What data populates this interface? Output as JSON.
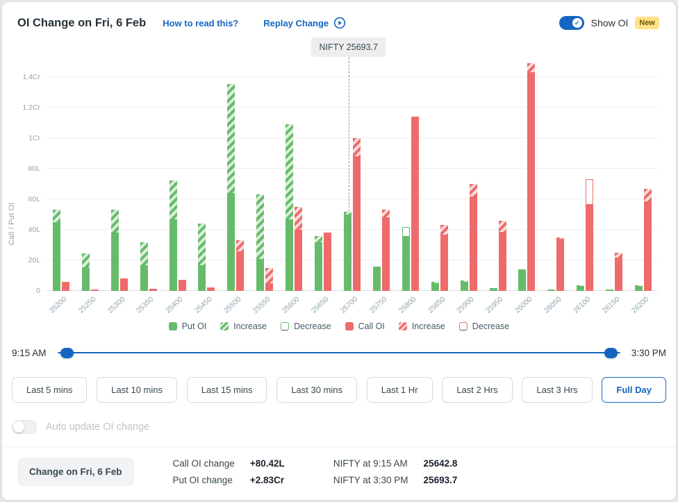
{
  "colors": {
    "put": "#66bb6a",
    "call": "#ef6a6a",
    "accent": "#1565c0",
    "badge_bg": "#ffe28a"
  },
  "header": {
    "title": "OI Change on Fri, 6 Feb",
    "how_to_read": "How to read this?",
    "replay": "Replay Change",
    "show_oi": "Show OI",
    "new_badge": "New"
  },
  "chart_data": {
    "type": "bar",
    "ylabel": "Call / Put OI",
    "unit": "lakh (1Cr = 100L)",
    "ymax_lakh": 150,
    "yticks": [
      {
        "label": "0",
        "value": 0
      },
      {
        "label": "20L",
        "value": 20
      },
      {
        "label": "40L",
        "value": 40
      },
      {
        "label": "60L",
        "value": 60
      },
      {
        "label": "80L",
        "value": 80
      },
      {
        "label": "1Cr",
        "value": 100
      },
      {
        "label": "1.2Cr",
        "value": 120
      },
      {
        "label": "1.4Cr",
        "value": 140
      }
    ],
    "categories": [
      "25200",
      "25250",
      "25300",
      "25350",
      "25400",
      "25450",
      "25500",
      "25550",
      "25600",
      "25650",
      "25700",
      "25750",
      "25800",
      "25850",
      "25900",
      "25950",
      "26000",
      "26050",
      "26100",
      "26150",
      "26200"
    ],
    "series": [
      {
        "name": "Put OI",
        "kind": "put",
        "color": "#66bb6a",
        "solid": [
          45,
          15.5,
          38,
          17,
          47,
          17,
          64,
          21,
          47,
          32,
          50,
          16,
          36,
          5,
          6,
          2,
          14,
          1,
          3,
          1,
          3
        ],
        "increase": [
          8,
          9,
          15,
          15,
          25.5,
          27,
          71.5,
          42,
          62,
          4,
          2,
          0,
          0,
          1,
          1,
          0,
          0,
          0,
          0.5,
          0,
          0.5
        ],
        "decrease": [
          0,
          0,
          0,
          0,
          0,
          0,
          0,
          0,
          0,
          0,
          0,
          0,
          6,
          0,
          0,
          0,
          0,
          0,
          0,
          0,
          0
        ]
      },
      {
        "name": "Call OI",
        "kind": "call",
        "color": "#ef6a6a",
        "solid": [
          6,
          1,
          8,
          1.5,
          7.5,
          2.5,
          26,
          5,
          40,
          38,
          88,
          48,
          114,
          37,
          62,
          38.5,
          143,
          34,
          57,
          22,
          58.5
        ],
        "increase": [
          0,
          0,
          0,
          0,
          0,
          0,
          7,
          10,
          15,
          0,
          12,
          5,
          0,
          6,
          8,
          7.5,
          6,
          1,
          0,
          3,
          8.5
        ],
        "decrease": [
          0,
          0,
          0,
          0,
          0,
          0,
          0,
          0,
          0,
          0,
          0,
          0,
          0,
          0,
          0,
          0,
          0,
          0,
          16,
          0,
          0
        ]
      }
    ],
    "nifty_marker": {
      "label": "NIFTY 25693.7",
      "value": 25693.7
    },
    "legend": [
      {
        "label": "Put OI",
        "style": "put-solid"
      },
      {
        "label": "Increase",
        "style": "put-inc"
      },
      {
        "label": "Decrease",
        "style": "put-dec"
      },
      {
        "label": "Call OI",
        "style": "call-solid"
      },
      {
        "label": "Increase",
        "style": "call-inc"
      },
      {
        "label": "Decrease",
        "style": "call-dec"
      }
    ]
  },
  "slider": {
    "start_label": "9:15 AM",
    "end_label": "3:30 PM"
  },
  "range_buttons": {
    "items": [
      "Last 5 mins",
      "Last 10 mins",
      "Last 15 mins",
      "Last 30 mins",
      "Last 1 Hr",
      "Last 2 Hrs",
      "Last 3 Hrs",
      "Full Day"
    ],
    "active": "Full Day"
  },
  "auto_update": {
    "label": "Auto update OI change",
    "enabled": false
  },
  "footer": {
    "change_button": "Change on Fri, 6 Feb",
    "oi_stats": [
      {
        "label": "Call OI change",
        "value": "+80.42L"
      },
      {
        "label": "Put OI change",
        "value": "+2.83Cr"
      }
    ],
    "nifty_stats": [
      {
        "label": "NIFTY at 9:15 AM",
        "value": "25642.8"
      },
      {
        "label": "NIFTY at 3:30 PM",
        "value": "25693.7"
      }
    ]
  }
}
